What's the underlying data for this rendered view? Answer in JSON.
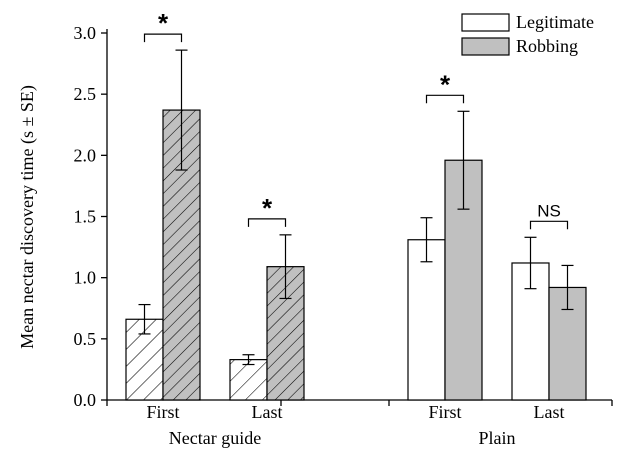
{
  "chart_data": {
    "type": "bar",
    "title": "",
    "ylabel": "Mean nectar discovery time (s ± SE)",
    "ylim": [
      0,
      3.0
    ],
    "yticks": [
      "0.0",
      "0.5",
      "1.0",
      "1.5",
      "2.0",
      "2.5",
      "3.0"
    ],
    "groups": [
      {
        "name": "Nectar guide",
        "categories": [
          {
            "label": "First",
            "legitimate": 0.66,
            "legitimate_se": 0.12,
            "robbing": 2.37,
            "robbing_se": 0.49,
            "significance": "*"
          },
          {
            "label": "Last",
            "legitimate": 0.33,
            "legitimate_se": 0.04,
            "robbing": 1.09,
            "robbing_se": 0.26,
            "significance": "*"
          }
        ]
      },
      {
        "name": "Plain",
        "categories": [
          {
            "label": "First",
            "legitimate": 1.31,
            "legitimate_se": 0.18,
            "robbing": 1.96,
            "robbing_se": 0.4,
            "significance": "*"
          },
          {
            "label": "Last",
            "legitimate": 1.12,
            "legitimate_se": 0.21,
            "robbing": 0.92,
            "robbing_se": 0.18,
            "significance": "NS"
          }
        ]
      }
    ],
    "legend": {
      "position": "top-right",
      "entries": [
        {
          "name": "Legitimate",
          "fill": "#ffffff"
        },
        {
          "name": "Robbing",
          "fill": "#c0c0c0"
        }
      ]
    },
    "colors": {
      "legitimate": "#ffffff",
      "robbing": "#c0c0c0",
      "stroke": "#000000"
    },
    "hatched_group": "Nectar guide",
    "grid": false
  }
}
